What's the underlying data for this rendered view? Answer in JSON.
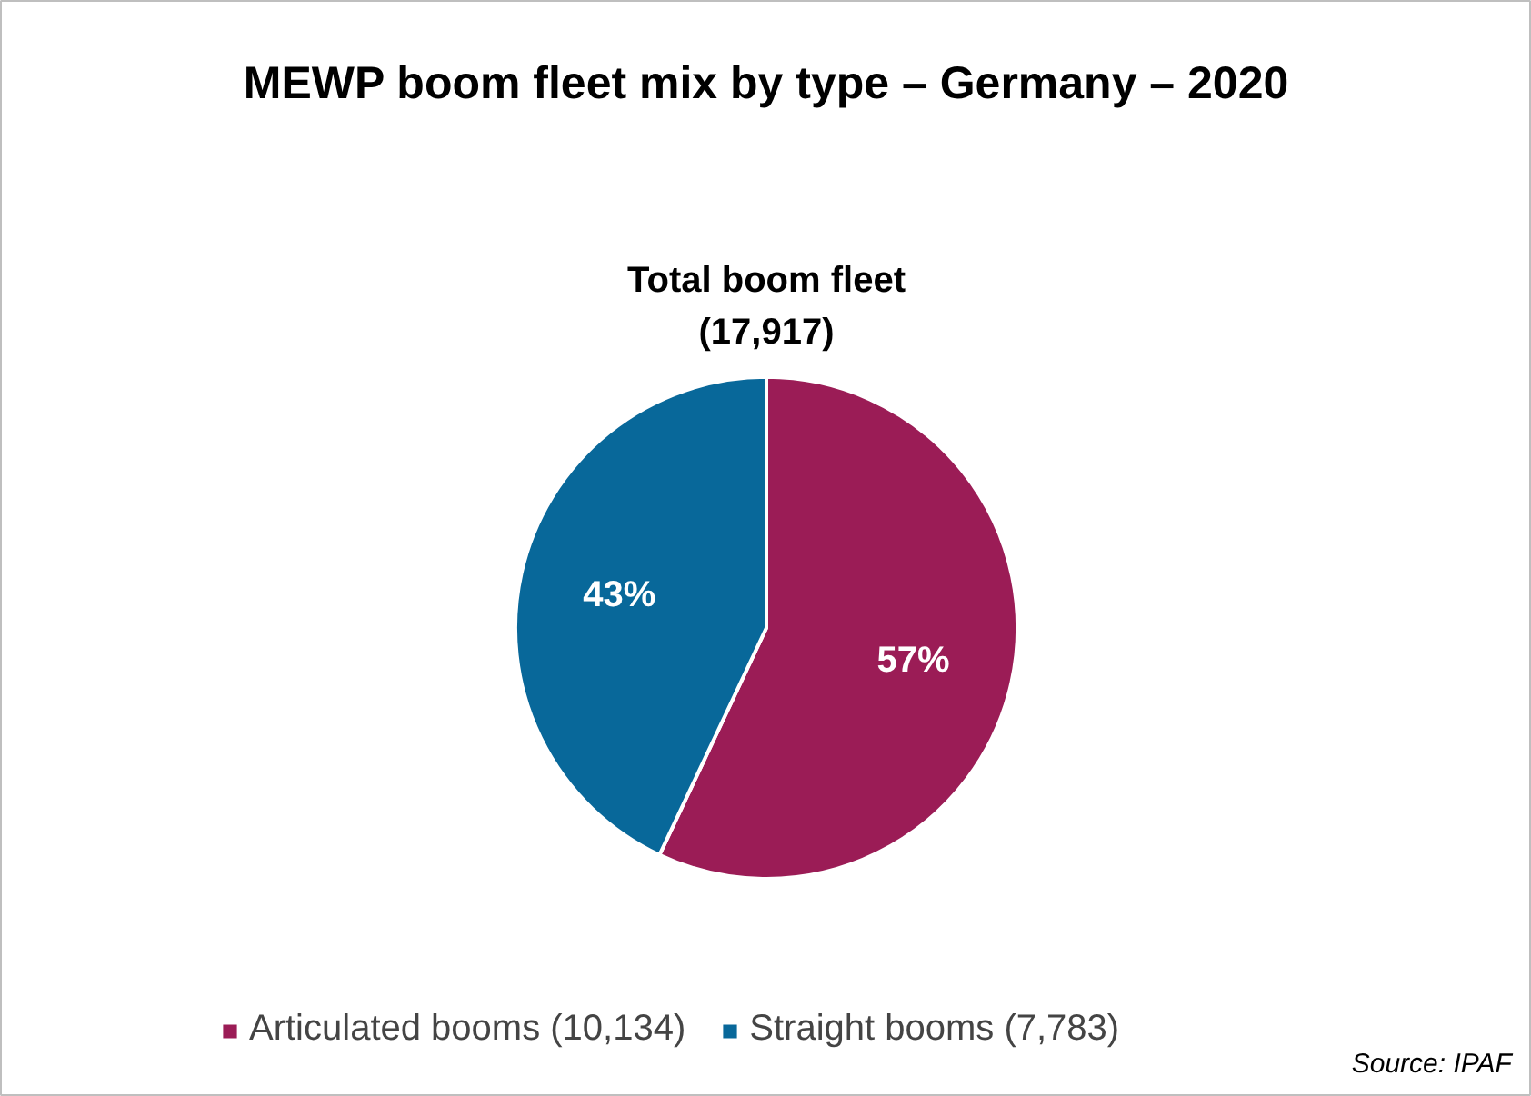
{
  "chart_data": {
    "type": "pie",
    "title": "MEWP boom fleet mix by type – Germany – 2020",
    "subtitle": "Total boom fleet\n(17,917)",
    "categories": [
      "Articulated booms (10,134)",
      "Straight booms (7,783)"
    ],
    "values": [
      57,
      43
    ],
    "value_labels": [
      "57%",
      "43%"
    ],
    "colors": [
      "#9b1c56",
      "#08689a"
    ],
    "legend": "bottom",
    "annotations": [
      "Source:  IPAF"
    ]
  }
}
